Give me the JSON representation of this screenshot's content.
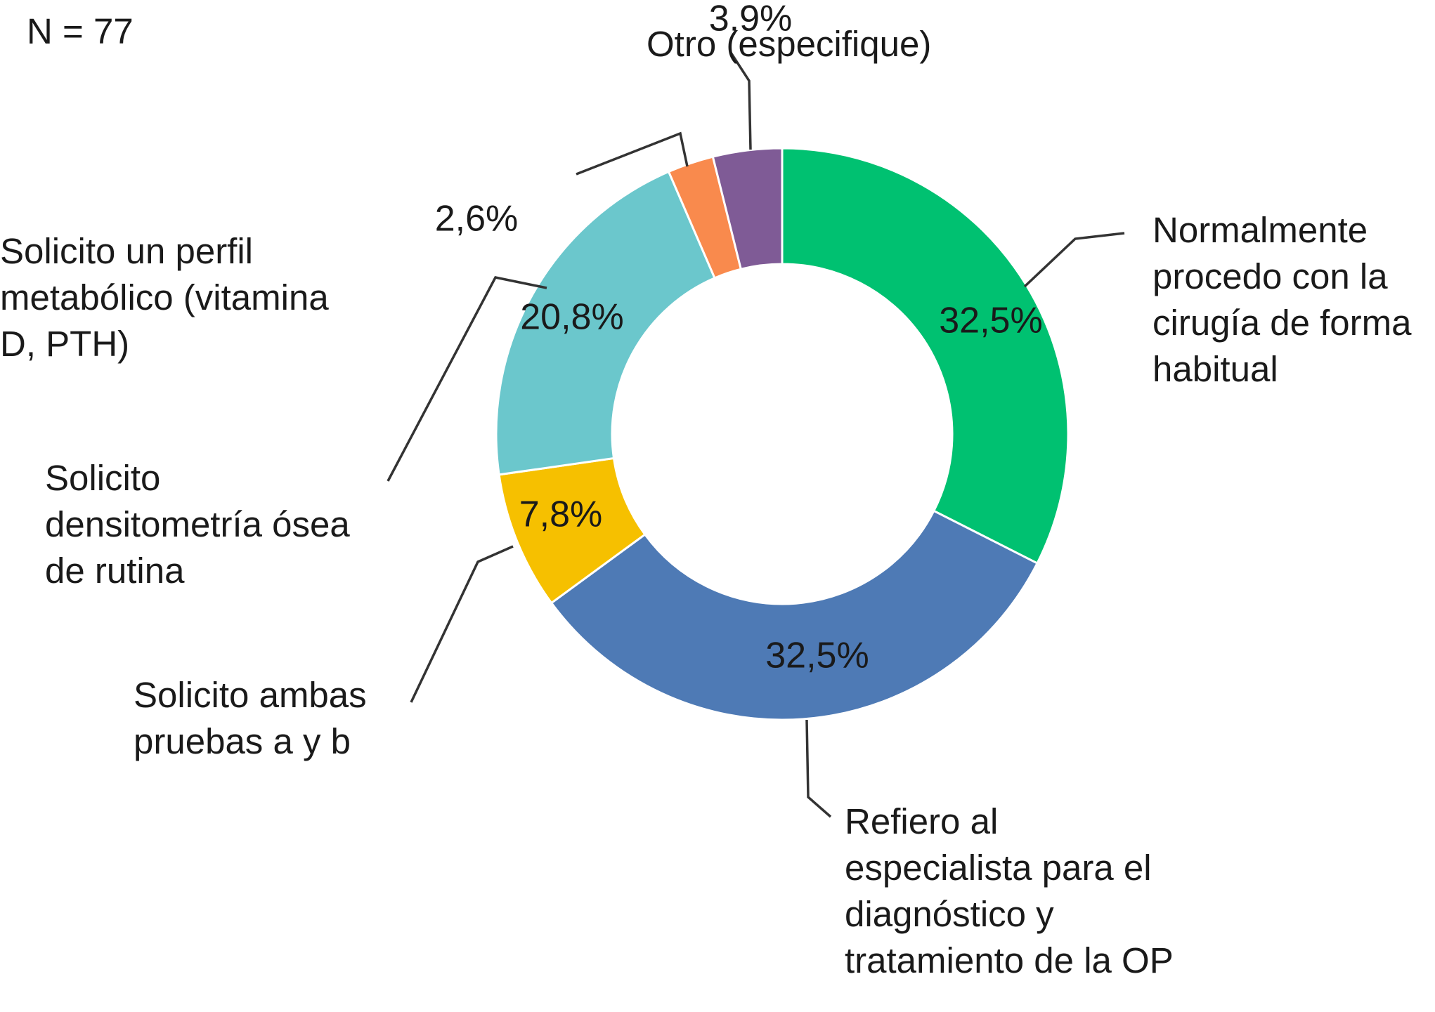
{
  "sample_size_label": "N = 77",
  "chart_data": {
    "type": "pie",
    "donut": true,
    "legend": "none",
    "slices": [
      {
        "label": [
          "Normalmente",
          "procedo con la",
          "cirugía de forma",
          "habitual"
        ],
        "value": 32.5,
        "value_label": "32,5%",
        "color": "#00c171"
      },
      {
        "label": [
          "Refiero al",
          "especialista para el",
          "diagnóstico y",
          "tratamiento de la OP"
        ],
        "value": 32.5,
        "value_label": "32,5%",
        "color": "#4e7ab5"
      },
      {
        "label": [
          "Solicito ambas",
          "pruebas a y b"
        ],
        "value": 7.8,
        "value_label": "7,8%",
        "color": "#f6c000"
      },
      {
        "label": [
          "Solicito",
          "densitometría ósea",
          "de rutina"
        ],
        "value": 20.8,
        "value_label": "20,8%",
        "color": "#6bc7cc"
      },
      {
        "label": [
          "Solicito un perfil",
          "metabólico (vitamina",
          "D, PTH)"
        ],
        "value": 2.6,
        "value_label": "2,6%",
        "color": "#f98a4d"
      },
      {
        "label": [
          "Otro (especifique)"
        ],
        "value": 3.9,
        "value_label": "3,9%",
        "color": "#7f5b96"
      }
    ]
  }
}
